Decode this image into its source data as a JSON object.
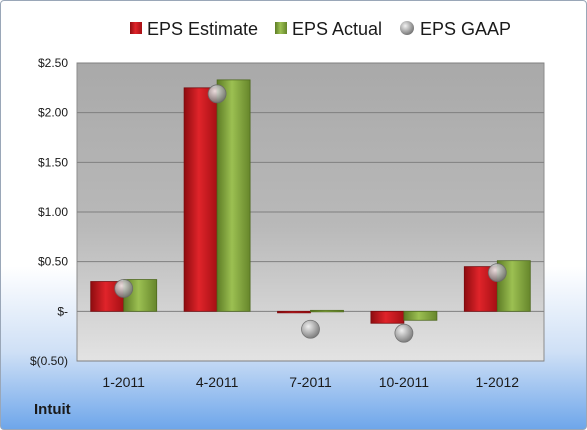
{
  "company": "Intuit",
  "colors": {
    "estimate": "#c8141b",
    "actual": "#7ea23a",
    "gaap": "#a8a8a8"
  },
  "chart_data": {
    "type": "bar",
    "categories": [
      "1-2011",
      "4-2011",
      "7-2011",
      "10-2011",
      "1-2012"
    ],
    "series": [
      {
        "name": "EPS Estimate",
        "kind": "bar",
        "values": [
          0.3,
          2.25,
          0.0,
          -0.12,
          0.45
        ]
      },
      {
        "name": "EPS Actual",
        "kind": "bar",
        "values": [
          0.32,
          2.33,
          0.01,
          -0.09,
          0.51
        ]
      },
      {
        "name": "EPS GAAP",
        "kind": "marker",
        "values": [
          0.23,
          2.19,
          -0.18,
          -0.22,
          0.39
        ]
      }
    ],
    "ylim": [
      -0.5,
      2.5
    ],
    "yticks": [
      2.5,
      2.0,
      1.5,
      1.0,
      0.5,
      0.0,
      -0.5
    ],
    "ytick_labels": [
      "$2.50",
      "$2.00",
      "$1.50",
      "$1.00",
      "$0.50",
      "$-",
      "$(0.50)"
    ],
    "legend_position": "top",
    "grid": true
  }
}
